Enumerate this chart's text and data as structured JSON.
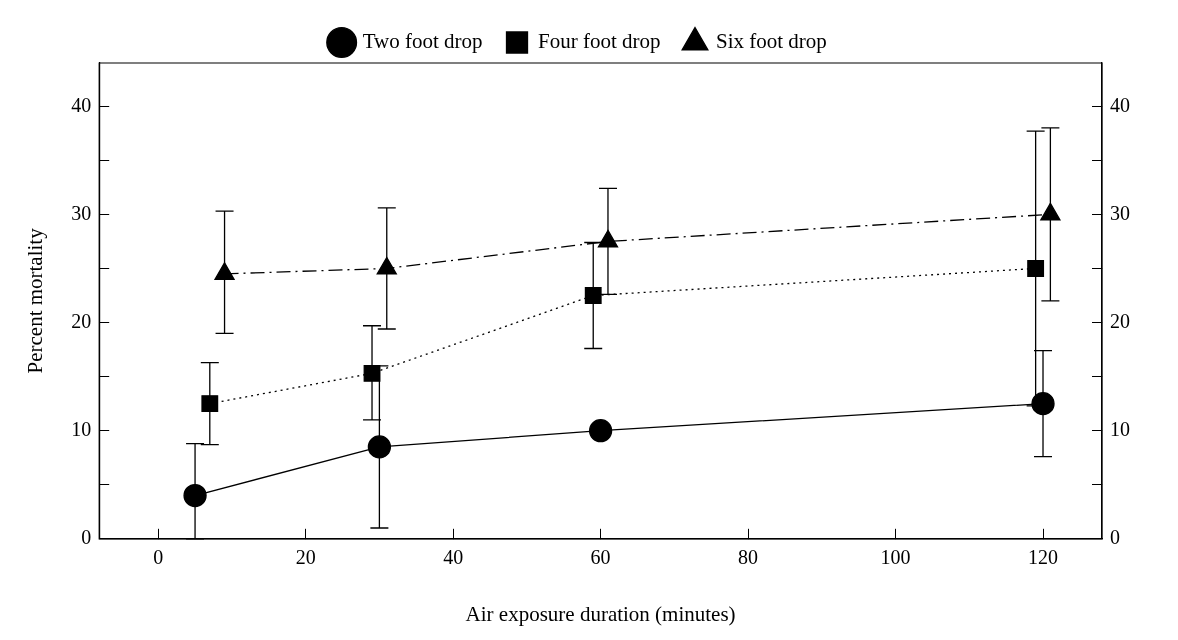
{
  "chart_data": {
    "type": "line",
    "xlabel": "Air exposure duration (minutes)",
    "ylabel": "Percent mortality",
    "xlim": [
      -8,
      128
    ],
    "xticks": [
      0,
      20,
      40,
      60,
      80,
      100,
      120
    ],
    "ylim": [
      0,
      44
    ],
    "yticks": [
      0,
      {
        "value": 5,
        "label": null
      },
      10,
      {
        "value": 15,
        "label": null
      },
      20,
      {
        "value": 25,
        "label": null
      },
      30,
      {
        "value": 35,
        "label": null
      },
      40
    ],
    "y2lim": [
      0,
      44
    ],
    "y2ticks": [
      0,
      {
        "value": 5,
        "label": null
      },
      10,
      {
        "value": 15,
        "label": null
      },
      20,
      {
        "value": 25,
        "label": null
      },
      30,
      {
        "value": 35,
        "label": null
      },
      40
    ],
    "grid": false,
    "legend": "top",
    "series": [
      {
        "name": "Two foot drop",
        "color": "#000000",
        "marker": "circle",
        "line_style": "solid",
        "x": [
          5,
          30,
          60,
          120
        ],
        "values": [
          4,
          8.5,
          10,
          12.5
        ],
        "errors": [
          [
            0,
            8.8
          ],
          [
            1,
            16
          ],
          null,
          [
            7.6,
            17.4
          ]
        ]
      },
      {
        "name": "Four foot drop",
        "color": "#000000",
        "marker": "square",
        "line_style": "dotted",
        "x": [
          7,
          29,
          59,
          119
        ],
        "values": [
          12.5,
          15.3,
          22.5,
          25
        ],
        "errors": [
          [
            8.7,
            16.3
          ],
          [
            11,
            19.7
          ],
          [
            17.6,
            27.4
          ],
          [
            12.3,
            37.7
          ]
        ]
      },
      {
        "name": "Six foot drop",
        "color": "#000000",
        "marker": "triangle",
        "line_style": "dashed",
        "x": [
          9,
          31,
          61,
          121
        ],
        "values": [
          24.5,
          25,
          27.5,
          30
        ],
        "errors": [
          [
            19,
            30.3
          ],
          [
            19.4,
            30.6
          ],
          [
            22.6,
            32.4
          ],
          [
            22,
            38
          ]
        ]
      }
    ]
  }
}
